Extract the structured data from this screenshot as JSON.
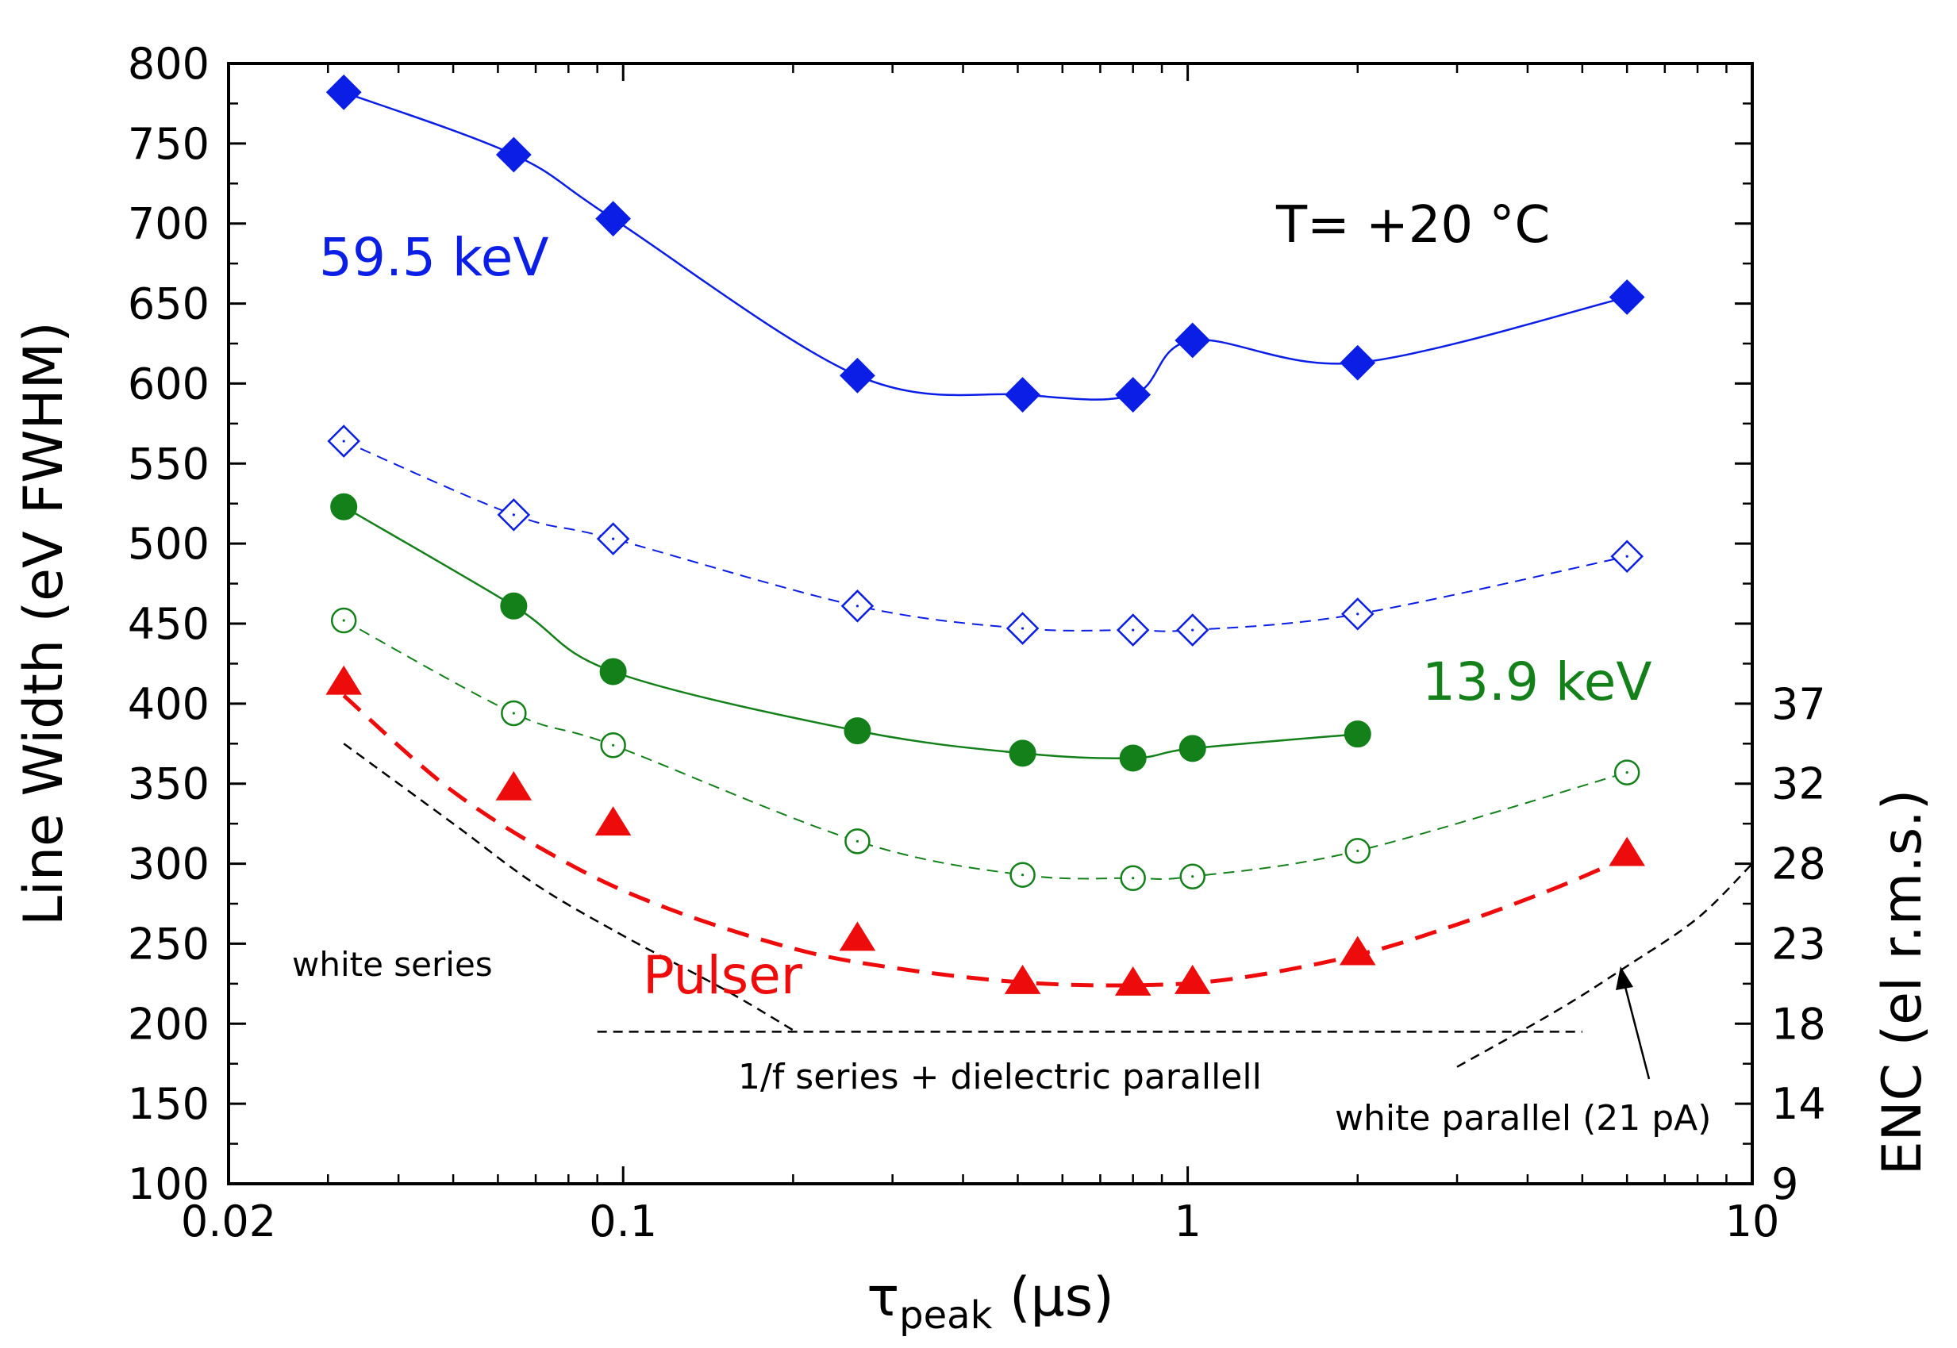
{
  "chart_data": {
    "type": "scatter",
    "xscale": "log",
    "xlim": [
      0.02,
      10
    ],
    "ylim": [
      100,
      800
    ],
    "xlabel": {
      "base": "τ",
      "sub": "peak",
      "unit": " (μs)"
    },
    "ylabel": "Line Width (eV FWHM)",
    "y2label": "ENC (el r.m.s.)",
    "x_ticks": [
      {
        "value": 0.02,
        "label": "0.02"
      },
      {
        "value": 0.1,
        "label": "0.1"
      },
      {
        "value": 1,
        "label": "1"
      },
      {
        "value": 10,
        "label": "10"
      }
    ],
    "y_ticks": [
      {
        "value": 100,
        "label": "100"
      },
      {
        "value": 150,
        "label": "150"
      },
      {
        "value": 200,
        "label": "200"
      },
      {
        "value": 250,
        "label": "250"
      },
      {
        "value": 300,
        "label": "300"
      },
      {
        "value": 350,
        "label": "350"
      },
      {
        "value": 400,
        "label": "400"
      },
      {
        "value": 450,
        "label": "450"
      },
      {
        "value": 500,
        "label": "500"
      },
      {
        "value": 550,
        "label": "550"
      },
      {
        "value": 600,
        "label": "600"
      },
      {
        "value": 650,
        "label": "650"
      },
      {
        "value": 700,
        "label": "700"
      },
      {
        "value": 750,
        "label": "750"
      },
      {
        "value": 800,
        "label": "800"
      }
    ],
    "y2_ticks": [
      {
        "value": 100,
        "label": "9"
      },
      {
        "value": 150,
        "label": "14"
      },
      {
        "value": 200,
        "label": "18"
      },
      {
        "value": 250,
        "label": "23"
      },
      {
        "value": 300,
        "label": "28"
      },
      {
        "value": 350,
        "label": "32"
      },
      {
        "value": 400,
        "label": "37"
      }
    ],
    "series": [
      {
        "name": "59.5 keV filled",
        "color": "#0a1ee6",
        "marker": "diamond",
        "filled": true,
        "line": "solid",
        "lineWidth": 2.5,
        "x": [
          0.032,
          0.064,
          0.096,
          0.26,
          0.51,
          0.8,
          1.02,
          2.0,
          6.0
        ],
        "y": [
          782,
          743,
          703,
          605,
          593,
          593,
          627,
          613,
          654
        ]
      },
      {
        "name": "59.5 keV open",
        "color": "#0a1ee6",
        "marker": "diamond",
        "filled": false,
        "line": "dashed",
        "lineWidth": 2,
        "x": [
          0.032,
          0.064,
          0.096,
          0.26,
          0.51,
          0.8,
          1.02,
          2.0,
          6.0
        ],
        "y": [
          564,
          518,
          503,
          461,
          447,
          446,
          446,
          456,
          492
        ]
      },
      {
        "name": "13.9 keV filled",
        "color": "#13801a",
        "marker": "circle",
        "filled": true,
        "line": "solid",
        "lineWidth": 2.5,
        "x": [
          0.032,
          0.064,
          0.096,
          0.26,
          0.51,
          0.8,
          1.02,
          2.0
        ],
        "y": [
          523,
          461,
          420,
          383,
          369,
          366,
          372,
          381
        ]
      },
      {
        "name": "13.9 keV open",
        "color": "#13801a",
        "marker": "circle",
        "filled": false,
        "line": "dashed",
        "lineWidth": 2,
        "x": [
          0.032,
          0.064,
          0.096,
          0.26,
          0.51,
          0.8,
          1.02,
          2.0,
          6.0
        ],
        "y": [
          452,
          394,
          374,
          314,
          293,
          291,
          292,
          308,
          357
        ]
      },
      {
        "name": "Pulser",
        "color": "#ee0b0b",
        "marker": "triangle",
        "filled": true,
        "line": "none",
        "x": [
          0.032,
          0.064,
          0.096,
          0.26,
          0.51,
          0.8,
          1.02,
          2.0,
          6.0
        ],
        "y": [
          413,
          347,
          325,
          253,
          226,
          225,
          226,
          244,
          306
        ]
      }
    ],
    "fit_curves": [
      {
        "name": "pulser fit",
        "color": "#ee0b0b",
        "dash": "28,16",
        "width": 5,
        "x": [
          0.032,
          0.05,
          0.08,
          0.12,
          0.2,
          0.3,
          0.5,
          0.8,
          1.2,
          2.0,
          3.0,
          4.5,
          6.0
        ],
        "y": [
          405,
          345,
          300,
          272,
          247,
          235,
          226,
          224,
          228,
          243,
          262,
          285,
          304
        ]
      }
    ],
    "noise_curves": [
      {
        "name": "white series",
        "color": "#000000",
        "x": [
          0.032,
          0.05,
          0.07,
          0.1,
          0.15,
          0.2
        ],
        "y": [
          375,
          325,
          287,
          255,
          222,
          196
        ]
      },
      {
        "name": "1/f series + dielectric parallell",
        "color": "#000000",
        "x": [
          0.09,
          5.0
        ],
        "y": [
          195,
          195
        ]
      },
      {
        "name": "white parallel (21 pA)",
        "color": "#000000",
        "x": [
          3.0,
          4.5,
          6.0,
          8.0,
          10.0
        ],
        "y": [
          173,
          208,
          236,
          266,
          300
        ]
      }
    ],
    "annotations": {
      "title": "T= +20 °C",
      "label_595": "59.5 keV",
      "label_139": "13.9 keV",
      "label_pulser": "Pulser",
      "label_white_series": "white series",
      "label_1f": "1/f series + dielectric parallell",
      "label_white_parallel": "white parallel (21 pA)"
    },
    "colors": {
      "blue": "#0a1ee6",
      "green": "#13801a",
      "red": "#ee0b0b",
      "axis": "#000000"
    }
  }
}
